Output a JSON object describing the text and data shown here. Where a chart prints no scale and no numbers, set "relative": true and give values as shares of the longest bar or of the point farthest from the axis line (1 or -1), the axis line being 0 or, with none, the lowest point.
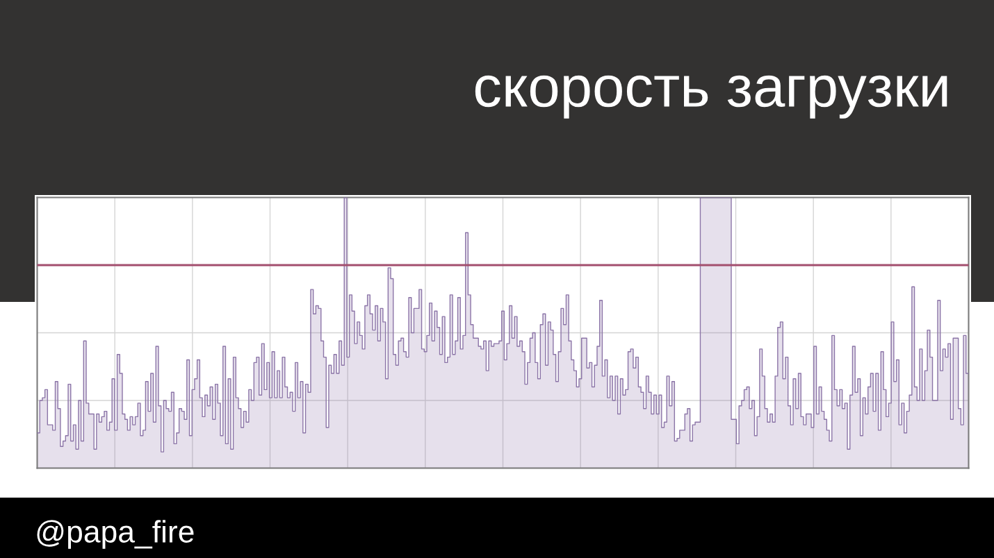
{
  "chart_data": {
    "type": "area",
    "title": "скорость загрузки",
    "annotations": [
      "@papa_fire"
    ],
    "relative": true,
    "grid": true,
    "tick_labels": false,
    "categories": [
      null,
      null,
      null,
      null,
      null,
      null,
      null,
      null,
      null,
      null,
      null,
      null,
      null,
      null,
      null,
      null,
      null,
      null,
      null,
      null,
      null,
      null,
      null,
      null,
      null,
      null,
      null,
      null,
      null,
      null,
      null,
      null,
      null,
      null,
      null,
      null,
      null,
      null,
      null,
      null,
      null,
      null,
      null,
      null,
      null,
      null,
      null,
      null,
      null,
      null,
      null,
      null,
      null,
      null,
      null,
      null,
      null,
      null,
      null,
      null,
      null,
      null,
      null,
      null,
      null,
      null,
      null,
      null,
      null,
      null,
      null,
      null,
      null,
      null,
      null,
      null,
      null,
      null,
      null,
      null,
      null,
      null,
      null,
      null,
      null,
      null,
      null,
      null,
      null,
      null,
      null,
      null,
      null,
      null,
      null,
      null,
      null,
      null,
      null,
      null,
      null,
      null,
      null,
      null,
      null,
      null,
      null,
      null,
      null,
      null,
      null,
      null,
      null,
      null,
      null,
      null,
      null,
      null,
      null,
      null,
      null,
      null,
      null,
      null,
      null,
      null,
      null,
      null,
      null,
      null,
      null,
      null,
      null,
      null,
      null,
      null,
      null,
      null,
      null,
      null,
      null,
      null,
      null,
      null,
      null,
      null,
      null,
      null,
      null,
      null,
      null,
      null,
      null,
      null,
      null,
      null,
      null,
      null,
      null,
      null,
      null,
      null,
      null,
      null,
      null,
      null,
      null,
      null,
      null,
      null,
      null,
      null,
      null,
      null,
      null,
      null,
      null,
      null,
      null,
      null,
      null,
      null,
      null,
      null,
      null,
      null,
      null,
      null,
      null,
      null,
      null,
      null,
      null,
      null,
      null,
      null,
      null,
      null,
      null,
      null,
      null,
      null,
      null,
      null,
      null,
      null,
      null,
      null,
      null,
      null,
      null,
      null,
      null,
      null,
      null,
      null,
      null,
      null,
      null,
      null,
      null,
      null,
      null,
      null,
      null,
      null,
      null,
      null,
      null,
      null,
      null,
      null,
      null,
      null,
      null,
      null,
      null,
      null,
      null,
      null,
      null,
      null,
      null,
      null,
      null,
      null,
      null,
      null,
      null,
      null,
      null,
      null,
      null,
      null,
      null,
      null,
      null,
      null,
      null,
      null,
      null,
      null,
      null,
      null,
      null,
      null,
      null,
      null,
      null,
      null,
      null,
      null,
      null,
      null,
      null,
      null,
      null,
      null,
      null,
      null,
      null,
      null,
      null,
      null,
      null,
      null,
      null,
      null,
      null,
      null,
      null,
      null,
      null,
      null,
      null,
      null,
      null,
      null,
      null,
      null,
      null,
      null,
      null,
      null,
      null,
      null,
      null,
      null,
      null,
      null,
      null,
      null,
      null,
      null,
      null,
      null,
      null,
      null,
      null,
      null,
      null,
      null,
      null,
      null,
      null,
      null,
      null,
      null,
      null,
      null,
      null,
      null,
      null,
      null,
      null,
      null,
      null,
      null,
      null,
      null,
      null,
      null,
      null,
      null,
      null,
      null,
      null,
      null,
      null,
      null,
      null,
      null,
      null,
      null,
      null,
      null,
      null,
      null,
      null,
      null,
      null
    ],
    "series": [
      {
        "color": "#8b74a7",
        "values": [
          0.13,
          0.25,
          0.26,
          0.29,
          0.16,
          0.16,
          0.14,
          0.32,
          0.22,
          0.08,
          0.1,
          0.12,
          0.31,
          0.1,
          0.16,
          0.07,
          0.25,
          0.1,
          0.47,
          0.24,
          0.2,
          0.2,
          0.07,
          0.2,
          0.17,
          0.19,
          0.21,
          0.14,
          0.17,
          0.33,
          0.14,
          0.42,
          0.35,
          0.2,
          0.18,
          0.14,
          0.19,
          0.16,
          0.19,
          0.24,
          0.12,
          0.14,
          0.32,
          0.21,
          0.35,
          0.17,
          0.45,
          0.23,
          0.06,
          0.25,
          0.22,
          0.21,
          0.28,
          0.09,
          0.13,
          0.22,
          0.21,
          0.18,
          0.4,
          0.12,
          0.29,
          0.33,
          0.4,
          0.26,
          0.19,
          0.27,
          0.23,
          0.3,
          0.18,
          0.31,
          0.24,
          0.12,
          0.45,
          0.09,
          0.33,
          0.07,
          0.41,
          0.26,
          0.22,
          0.15,
          0.21,
          0.17,
          0.29,
          0.25,
          0.39,
          0.41,
          0.27,
          0.46,
          0.29,
          0.39,
          0.26,
          0.43,
          0.26,
          0.36,
          0.26,
          0.41,
          0.3,
          0.26,
          0.28,
          0.21,
          0.39,
          0.26,
          0.32,
          0.13,
          0.31,
          0.28,
          0.66,
          0.57,
          0.6,
          0.59,
          0.47,
          0.41,
          0.15,
          0.38,
          0.35,
          0.42,
          0.35,
          0.47,
          0.38,
          1.0,
          0.41,
          0.64,
          0.58,
          0.46,
          0.54,
          0.49,
          0.44,
          0.6,
          0.64,
          0.57,
          0.51,
          0.6,
          0.47,
          0.59,
          0.54,
          0.33,
          0.74,
          0.7,
          0.42,
          0.38,
          0.47,
          0.48,
          0.43,
          0.41,
          0.63,
          0.5,
          0.59,
          0.59,
          0.66,
          0.44,
          0.43,
          0.49,
          0.61,
          0.47,
          0.58,
          0.52,
          0.42,
          0.56,
          0.39,
          0.41,
          0.64,
          0.42,
          0.47,
          0.63,
          0.44,
          0.49,
          0.87,
          0.64,
          0.53,
          0.48,
          0.48,
          0.45,
          0.44,
          0.47,
          0.36,
          0.47,
          0.45,
          0.46,
          0.46,
          0.47,
          0.58,
          0.4,
          0.46,
          0.6,
          0.48,
          0.56,
          0.45,
          0.47,
          0.43,
          0.31,
          0.39,
          0.48,
          0.5,
          0.39,
          0.33,
          0.53,
          0.57,
          0.38,
          0.54,
          0.51,
          0.42,
          0.32,
          0.43,
          0.59,
          0.53,
          0.64,
          0.47,
          0.4,
          0.36,
          0.3,
          0.33,
          0.48,
          0.48,
          0.37,
          0.39,
          0.3,
          0.38,
          0.45,
          0.62,
          0.34,
          0.4,
          0.26,
          0.34,
          0.25,
          0.34,
          0.2,
          0.33,
          0.27,
          0.29,
          0.43,
          0.44,
          0.37,
          0.41,
          0.3,
          0.28,
          0.22,
          0.34,
          0.28,
          0.2,
          0.27,
          0.2,
          0.27,
          0.15,
          0.17,
          0.34,
          0.23,
          0.32,
          0.1,
          0.11,
          0.14,
          0.14,
          0.2,
          0.22,
          0.1,
          0.16,
          0.17,
          0.17,
          1.0,
          1.0,
          1.0,
          1.0,
          1.0,
          1.0,
          1.0,
          1.0,
          1.0,
          1.0,
          1.0,
          1.0,
          0.18,
          0.18,
          0.09,
          0.23,
          0.25,
          0.29,
          0.3,
          0.22,
          0.25,
          0.12,
          0.19,
          0.44,
          0.34,
          0.22,
          0.17,
          0.2,
          0.17,
          0.34,
          0.52,
          0.54,
          0.33,
          0.41,
          0.23,
          0.16,
          0.33,
          0.22,
          0.35,
          0.19,
          0.16,
          0.2,
          0.2,
          0.15,
          0.45,
          0.2,
          0.3,
          0.21,
          0.18,
          0.14,
          0.1,
          0.49,
          0.29,
          0.23,
          0.29,
          0.22,
          0.24,
          0.07,
          0.27,
          0.45,
          0.28,
          0.33,
          0.12,
          0.26,
          0.2,
          0.3,
          0.35,
          0.21,
          0.35,
          0.14,
          0.43,
          0.29,
          0.19,
          0.24,
          0.54,
          0.32,
          0.4,
          0.16,
          0.24,
          0.13,
          0.21,
          0.27,
          0.67,
          0.3,
          0.25,
          0.44,
          0.25,
          0.36,
          0.51,
          0.41,
          0.25,
          0.25,
          0.62,
          0.36,
          0.44,
          0.41,
          0.46,
          0.18,
          0.48,
          0.48,
          0.22,
          0.16,
          0.49,
          0.35
        ]
      }
    ],
    "ref_lines": [
      {
        "axis": "y",
        "value": 0.75,
        "color": "#a34f6e"
      }
    ]
  }
}
